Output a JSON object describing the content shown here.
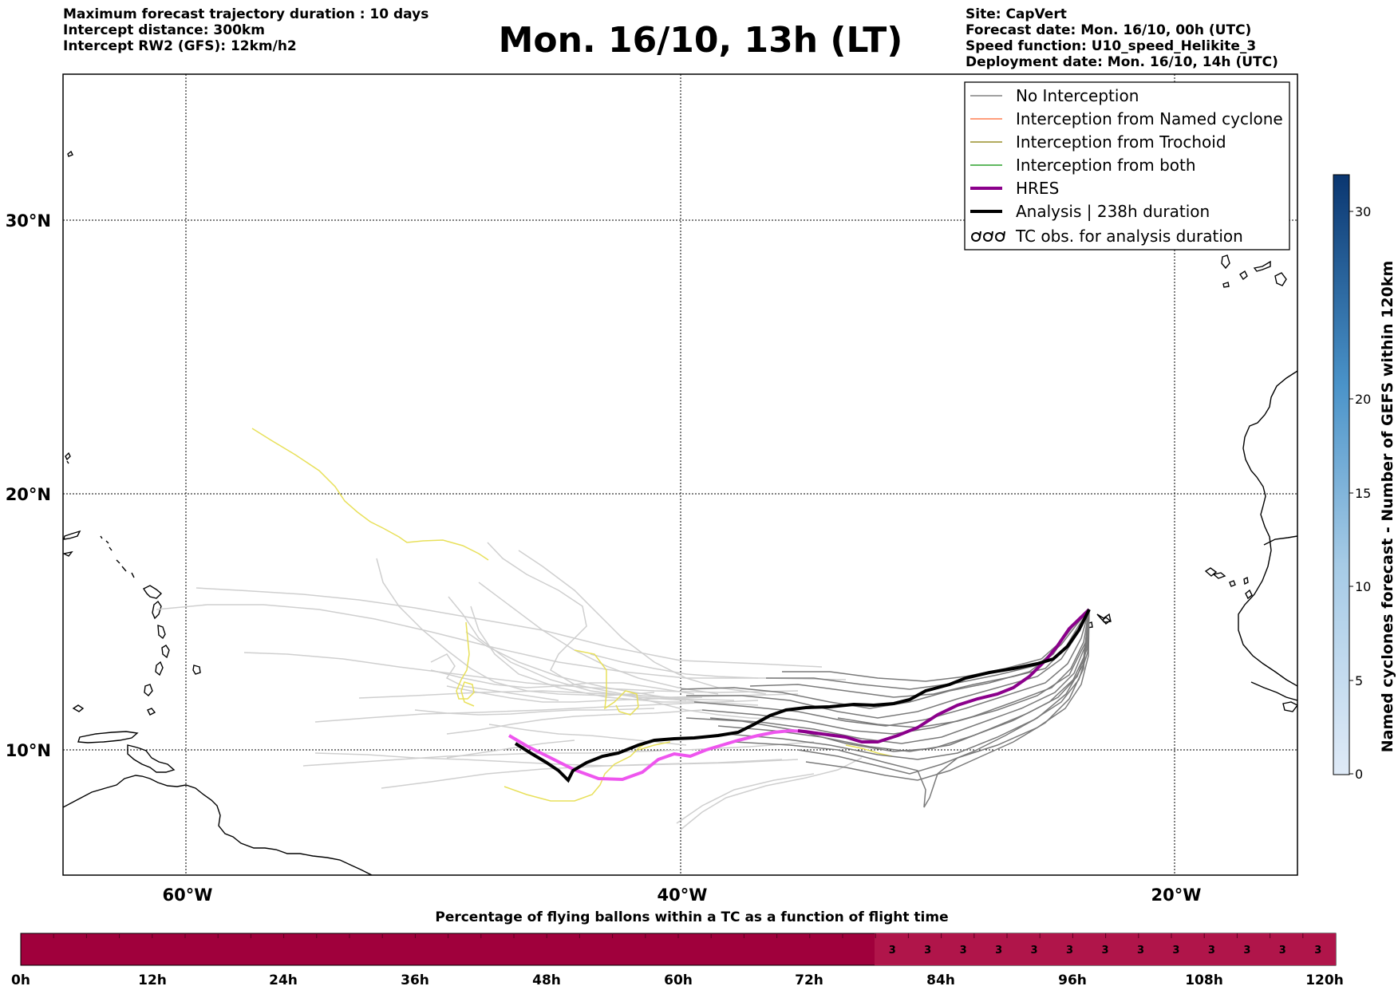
{
  "header": {
    "left_lines": [
      "Maximum forecast trajectory duration : 10 days",
      "Intercept distance: 300km",
      "Intercept RW2 (GFS):  12km/h2"
    ],
    "title": "Mon. 16/10, 13h (LT)",
    "right_lines": [
      "Site: CapVert",
      "Forecast date: Mon. 16/10, 00h (UTC)",
      "Speed function: U10_speed_Helikite_3",
      "Deployment date: Mon. 16/10, 14h (UTC)"
    ]
  },
  "map": {
    "lat_labels": [
      "30°N",
      "20°N",
      "10°N"
    ],
    "lon_labels": [
      "60°W",
      "40°W",
      "20°W"
    ]
  },
  "legend": {
    "items": [
      {
        "label": "No Interception",
        "color": "#808080",
        "style": "thin"
      },
      {
        "label": "Interception from Named cyclone",
        "color": "#ff7f50",
        "style": "thin"
      },
      {
        "label": "Interception from Trochoid",
        "color": "#998f2a",
        "style": "thin"
      },
      {
        "label": "Interception from both",
        "color": "#2ca02c",
        "style": "thin"
      },
      {
        "label": "HRES",
        "color": "#8b008b",
        "style": "thick"
      },
      {
        "label": "Analysis | 238h duration",
        "color": "#000000",
        "style": "thick"
      },
      {
        "label": "TC obs. for analysis duration",
        "color": "#000000",
        "style": "symbol"
      }
    ]
  },
  "colorbar": {
    "label": "Named cyclones forecast - Number of GEFS within 120km",
    "ticks": [
      "0",
      "5",
      "10",
      "15",
      "20",
      "30"
    ]
  },
  "bottom_bar": {
    "title": "Percentage of flying ballons within a TC as a function of flight time",
    "tick_labels": [
      "0h",
      "12h",
      "24h",
      "36h",
      "48h",
      "60h",
      "72h",
      "84h",
      "96h",
      "108h",
      "120h"
    ],
    "cell_values": [
      "3",
      "3",
      "3",
      "3",
      "3",
      "3",
      "3",
      "3",
      "3",
      "3",
      "3",
      "3",
      "3"
    ],
    "fill_color": "#a0003c",
    "cell_color": "#b0154a"
  }
}
